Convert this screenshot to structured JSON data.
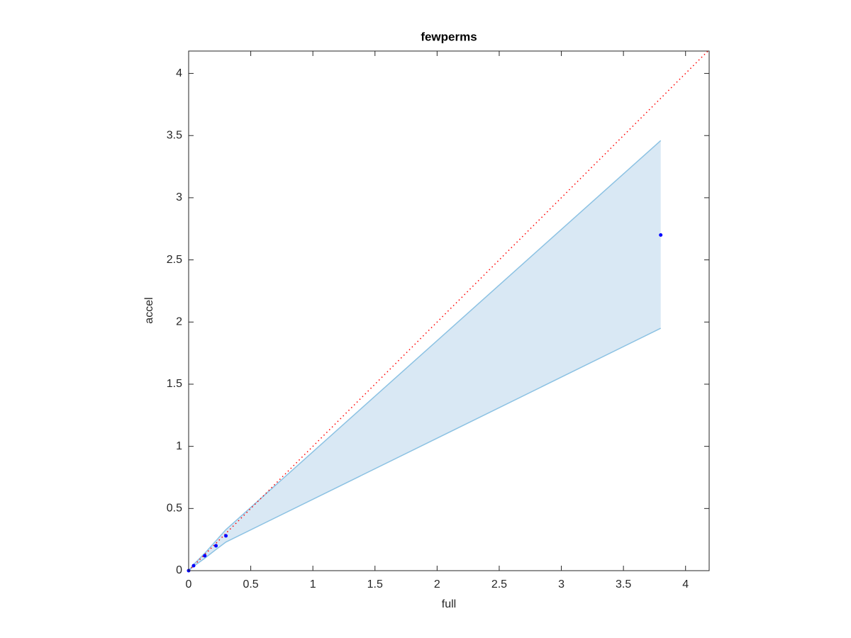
{
  "chart_data": {
    "type": "scatter",
    "title": "fewperms",
    "x_label": "full",
    "y_label": "accel",
    "x": [
      0,
      0.04,
      0.13,
      0.22,
      0.3,
      3.8
    ],
    "values": [
      0,
      0.04,
      0.12,
      0.2,
      0.28,
      2.7
    ],
    "color": "#0000ff",
    "band": {
      "upper": [
        0,
        0.05,
        0.14,
        0.24,
        0.33,
        3.46
      ],
      "lower": [
        0,
        0.035,
        0.1,
        0.17,
        0.23,
        1.95
      ],
      "color": "#d9e8f4",
      "edge_color": "#8cc2e3"
    },
    "reference_line": {
      "x": [
        0,
        4.19
      ],
      "y": [
        0,
        4.19
      ],
      "color": "#ff0000"
    },
    "xlim": [
      0,
      4.19
    ],
    "ylim": [
      0,
      4.18
    ],
    "xticks": [
      0,
      0.5,
      1,
      1.5,
      2,
      2.5,
      3,
      3.5,
      4
    ],
    "yticks": [
      0,
      0.5,
      1,
      1.5,
      2,
      2.5,
      3,
      3.5,
      4
    ]
  }
}
